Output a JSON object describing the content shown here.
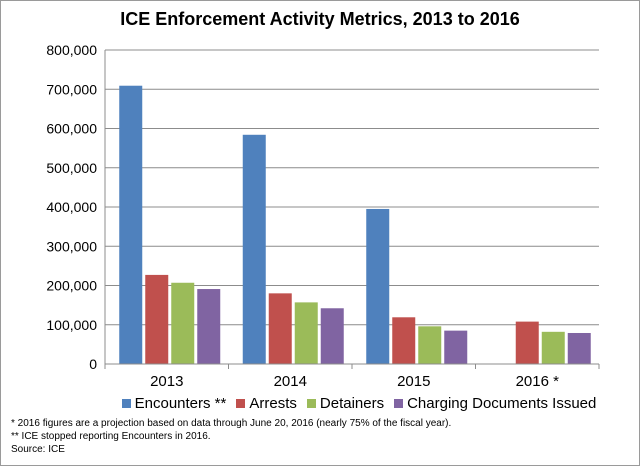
{
  "chart_data": {
    "type": "bar",
    "title": "ICE Enforcement Activity Metrics, 2013 to 2016",
    "xlabel": "",
    "ylabel": "",
    "ylim": [
      0,
      800000
    ],
    "yticks": [
      "0",
      "100,000",
      "200,000",
      "300,000",
      "400,000",
      "500,000",
      "600,000",
      "700,000",
      "800,000"
    ],
    "categories": [
      "2013",
      "2014",
      "2015",
      "2016 *"
    ],
    "series": [
      {
        "name": "Encounters **",
        "color": "#4f81bd",
        "values": [
          709000,
          584000,
          395000,
          null
        ]
      },
      {
        "name": "Arrests",
        "color": "#c0504d",
        "values": [
          227000,
          180000,
          119000,
          108000
        ]
      },
      {
        "name": "Detainers",
        "color": "#9bbb59",
        "values": [
          207000,
          157000,
          96000,
          82000
        ]
      },
      {
        "name": "Charging Documents Issued",
        "color": "#8064a2",
        "values": [
          191000,
          142000,
          85000,
          79000
        ]
      }
    ],
    "grid": true,
    "legend_position": "bottom"
  },
  "notes": [
    "* 2016 figures are a projection based on data through June 20, 2016 (nearly 75% of the fiscal year).",
    "** ICE stopped reporting Encounters in 2016.",
    "Source: ICE"
  ]
}
